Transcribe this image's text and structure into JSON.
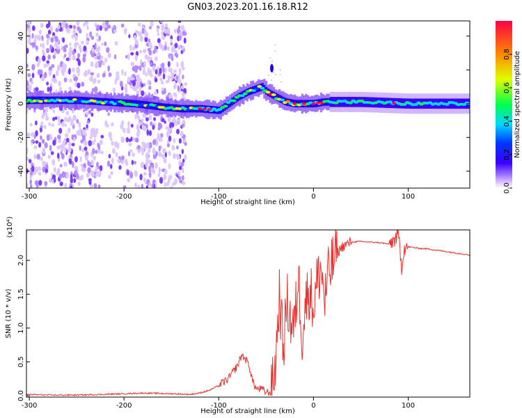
{
  "title": "GN03.2023.201.16.18.R12",
  "chart_data": [
    {
      "type": "heatmap",
      "xlabel": "Height of straight line (km)",
      "ylabel": "Frequency (Hz)",
      "xlim": [
        -303,
        165
      ],
      "ylim": [
        -50,
        49
      ],
      "xticks": [
        -300,
        -200,
        -100,
        0,
        100
      ],
      "yticks": [
        -40,
        -20,
        0,
        20,
        40
      ],
      "colorbar": {
        "label": "Normalized spectral amplitude",
        "range": [
          0,
          1
        ],
        "ticks": [
          "0.0",
          "0.2",
          "0.4",
          "0.6",
          "0.8"
        ],
        "colors": [
          "#ffffff",
          "#9a6bff",
          "#3a00ff",
          "#0038ff",
          "#00d8ff",
          "#00ff4c",
          "#e0ff00",
          "#ff8a00",
          "#ff0044"
        ]
      },
      "ridge": {
        "x": [
          -303,
          -280,
          -250,
          -220,
          -190,
          -160,
          -140,
          -120,
          -100,
          -90,
          -80,
          -70,
          -60,
          -55,
          -50,
          -40,
          -30,
          -20,
          -10,
          0,
          10,
          20,
          50,
          100,
          165
        ],
        "y": [
          2,
          2,
          2,
          1,
          0,
          -2,
          -3,
          -3,
          -4,
          0,
          4,
          7,
          9,
          10,
          7,
          4,
          1,
          0,
          0,
          0,
          1,
          1,
          1,
          0,
          0
        ]
      },
      "outliers": [
        {
          "x": -44,
          "y": 21
        }
      ]
    },
    {
      "type": "line",
      "xlabel": "Height of straight line (km)",
      "ylabel": "SNR (10 * v/v)",
      "multiplier": "(x10⁴)",
      "xlim": [
        -303,
        165
      ],
      "ylim": [
        -0.02,
        2.45
      ],
      "xticks": [
        -300,
        -200,
        -100,
        0,
        100
      ],
      "yticks": [
        "0.0",
        "0.5",
        "1.0",
        "1.5",
        "2.0"
      ],
      "color": "#e8322e",
      "series": [
        {
          "x": [
            -303,
            -280,
            -250,
            -220,
            -200,
            -180,
            -150,
            -130,
            -120,
            -110,
            -100,
            -90,
            -80,
            -76,
            -72,
            -68,
            -64,
            -60,
            -55,
            -50,
            -44,
            -40,
            -36,
            -32,
            -28,
            -24,
            -20,
            -16,
            -12,
            -8,
            -4,
            0,
            4,
            8,
            12,
            16,
            20,
            25,
            30,
            40,
            50,
            60,
            70,
            80,
            85,
            90,
            93,
            96,
            100,
            110,
            120,
            130,
            140,
            150,
            165
          ],
          "y": [
            0.02,
            0.01,
            0.01,
            0.02,
            0.03,
            0.04,
            0.03,
            0.02,
            0.04,
            0.08,
            0.15,
            0.25,
            0.45,
            0.6,
            0.55,
            0.45,
            0.2,
            0.1,
            0.1,
            0.05,
            0.05,
            0.5,
            1.5,
            0.7,
            1.4,
            1.1,
            1.0,
            1.8,
            0.9,
            1.4,
            1.6,
            1.3,
            1.7,
            1.9,
            1.4,
            1.8,
            1.95,
            2.1,
            2.2,
            2.27,
            2.28,
            2.27,
            2.26,
            2.24,
            2.3,
            2.35,
            1.9,
            2.2,
            2.2,
            2.18,
            2.17,
            2.15,
            2.13,
            2.11,
            2.08
          ]
        }
      ]
    }
  ]
}
